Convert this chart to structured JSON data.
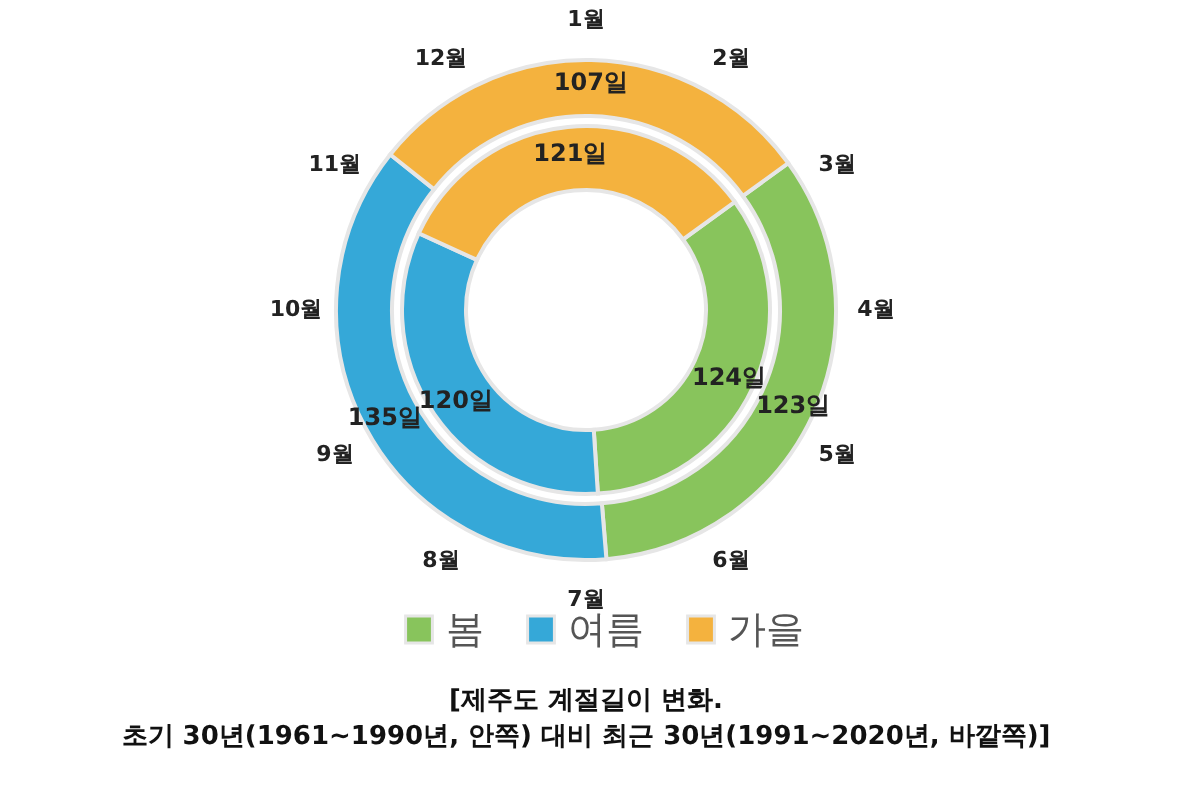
{
  "chart_data": {
    "type": "donut",
    "categories": [
      "봄",
      "여름",
      "가을"
    ],
    "colors": [
      "#88c45c",
      "#35a8d8",
      "#f4b23e"
    ],
    "series": [
      {
        "values": [
          124,
          120,
          121
        ],
        "value_labels": [
          "124일",
          "120일",
          "121일"
        ]
      },
      {
        "values": [
          123,
          135,
          107
        ],
        "value_labels": [
          "123일",
          "135일",
          "107일"
        ]
      }
    ],
    "legend": "bottom",
    "annotations": [
      "1월",
      "2월",
      "3월",
      "4월",
      "5월",
      "6월",
      "7월",
      "8월",
      "9월",
      "10월",
      "11월",
      "12월",
      "[제주도 계절길이 변화.",
      "초기 30년(1961~1990년, 안쪽) 대비 최근 30년(1991~2020년, 바깥쪽)]"
    ]
  }
}
